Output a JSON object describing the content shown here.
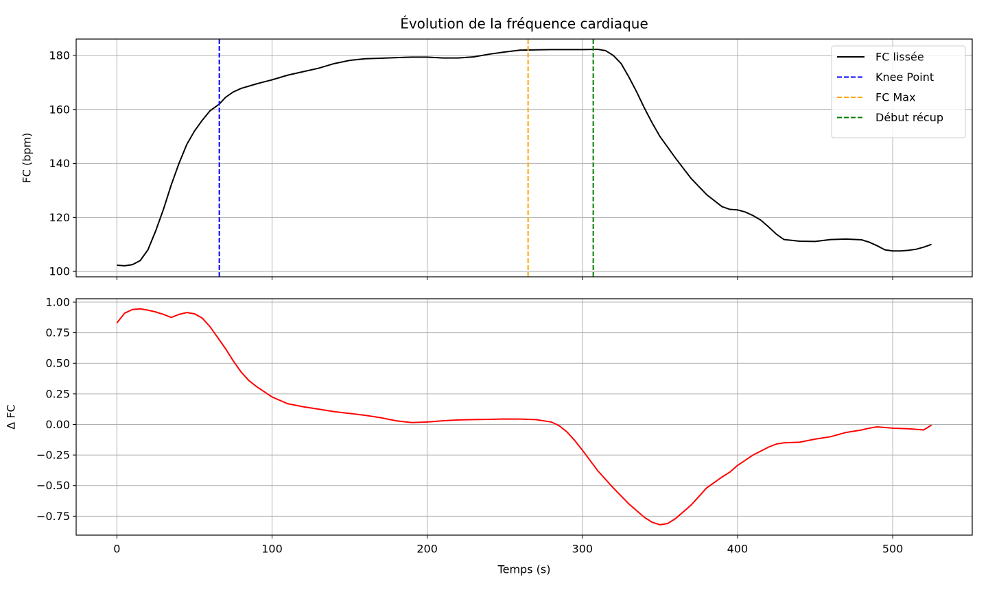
{
  "chart_data": [
    {
      "type": "line",
      "title": "Évolution de la fréquence cardiaque",
      "ylabel": "FC (bpm)",
      "x": [
        0,
        5,
        10,
        15,
        20,
        25,
        30,
        35,
        40,
        45,
        50,
        55,
        60,
        66,
        70,
        75,
        80,
        90,
        100,
        110,
        120,
        130,
        140,
        150,
        160,
        170,
        180,
        190,
        200,
        210,
        220,
        230,
        240,
        250,
        260,
        270,
        280,
        290,
        300,
        310,
        315,
        320,
        325,
        330,
        335,
        340,
        345,
        350,
        360,
        370,
        380,
        390,
        395,
        400,
        405,
        410,
        415,
        420,
        425,
        430,
        440,
        450,
        460,
        470,
        480,
        485,
        490,
        495,
        500,
        505,
        510,
        515,
        520,
        525
      ],
      "series": [
        {
          "name": "FC lissée",
          "color": "#000000",
          "values": [
            102.3,
            102.1,
            102.5,
            104,
            108,
            115,
            123,
            132,
            140,
            147,
            152,
            156,
            159.5,
            162,
            164.5,
            166.5,
            167.8,
            169.5,
            171,
            172.7,
            174,
            175.3,
            177,
            178.2,
            178.8,
            179,
            179.2,
            179.4,
            179.4,
            179.1,
            179.1,
            179.5,
            180.5,
            181.3,
            182,
            182.1,
            182.2,
            182.2,
            182.2,
            182.3,
            181.8,
            180,
            177,
            172,
            166.5,
            160.5,
            155,
            150,
            142,
            134.5,
            128.5,
            124,
            123,
            122.8,
            122,
            120.7,
            119,
            116.5,
            113.8,
            111.8,
            111.2,
            111.1,
            111.8,
            112,
            111.7,
            110.8,
            109.5,
            108,
            107.6,
            107.6,
            107.8,
            108.2,
            109,
            110
          ]
        }
      ],
      "vlines": [
        {
          "name": "Knee Point",
          "color": "#0000ff",
          "x": 66
        },
        {
          "name": "FC Max",
          "color": "#ffa500",
          "x": 265
        },
        {
          "name": "Début récup",
          "color": "#008000",
          "x": 307
        }
      ],
      "xlim": [
        -26.25,
        551.25
      ],
      "xticks": [
        0,
        100,
        200,
        300,
        400,
        500
      ],
      "ylim": [
        98,
        186.1
      ],
      "yticks": [
        100,
        120,
        140,
        160,
        180
      ],
      "grid": true,
      "legend": "upper right"
    },
    {
      "type": "line",
      "xlabel": "Temps (s)",
      "ylabel": "Δ FC",
      "x": [
        0,
        5,
        10,
        15,
        20,
        25,
        30,
        35,
        40,
        45,
        50,
        55,
        60,
        65,
        70,
        75,
        80,
        85,
        90,
        100,
        110,
        120,
        130,
        140,
        150,
        160,
        170,
        180,
        190,
        200,
        210,
        220,
        230,
        240,
        250,
        260,
        270,
        280,
        285,
        290,
        295,
        300,
        310,
        320,
        330,
        340,
        345,
        350,
        355,
        360,
        370,
        380,
        390,
        395,
        400,
        410,
        420,
        425,
        430,
        440,
        450,
        460,
        470,
        480,
        485,
        490,
        495,
        500,
        510,
        520,
        525
      ],
      "series": [
        {
          "name": "Δ FC",
          "color": "#ff0000",
          "values": [
            0.83,
            0.91,
            0.94,
            0.945,
            0.935,
            0.92,
            0.9,
            0.875,
            0.9,
            0.915,
            0.905,
            0.87,
            0.8,
            0.71,
            0.62,
            0.52,
            0.43,
            0.36,
            0.31,
            0.225,
            0.17,
            0.145,
            0.125,
            0.105,
            0.09,
            0.075,
            0.055,
            0.03,
            0.015,
            0.02,
            0.03,
            0.037,
            0.04,
            0.042,
            0.045,
            0.044,
            0.04,
            0.02,
            -0.01,
            -0.06,
            -0.13,
            -0.21,
            -0.38,
            -0.52,
            -0.65,
            -0.76,
            -0.8,
            -0.82,
            -0.81,
            -0.77,
            -0.66,
            -0.52,
            -0.43,
            -0.39,
            -0.335,
            -0.25,
            -0.185,
            -0.16,
            -0.15,
            -0.145,
            -0.12,
            -0.1,
            -0.065,
            -0.045,
            -0.03,
            -0.02,
            -0.025,
            -0.03,
            -0.035,
            -0.045,
            -0.005
          ]
        }
      ],
      "xlim": [
        -26.25,
        551.25
      ],
      "xticks": [
        0,
        100,
        200,
        300,
        400,
        500
      ],
      "ylim": [
        -0.905,
        1.028
      ],
      "yticks": [
        {
          "value": 1,
          "label": "1.00"
        },
        {
          "value": 0.75,
          "label": "0.75"
        },
        {
          "value": 0.5,
          "label": "0.50"
        },
        {
          "value": 0.25,
          "label": "0.25"
        },
        {
          "value": 0,
          "label": "0.00"
        },
        {
          "value": -0.25,
          "label": "−0.25"
        },
        {
          "value": -0.5,
          "label": "−0.50"
        },
        {
          "value": -0.75,
          "label": "−0.75"
        }
      ],
      "grid": true
    }
  ]
}
